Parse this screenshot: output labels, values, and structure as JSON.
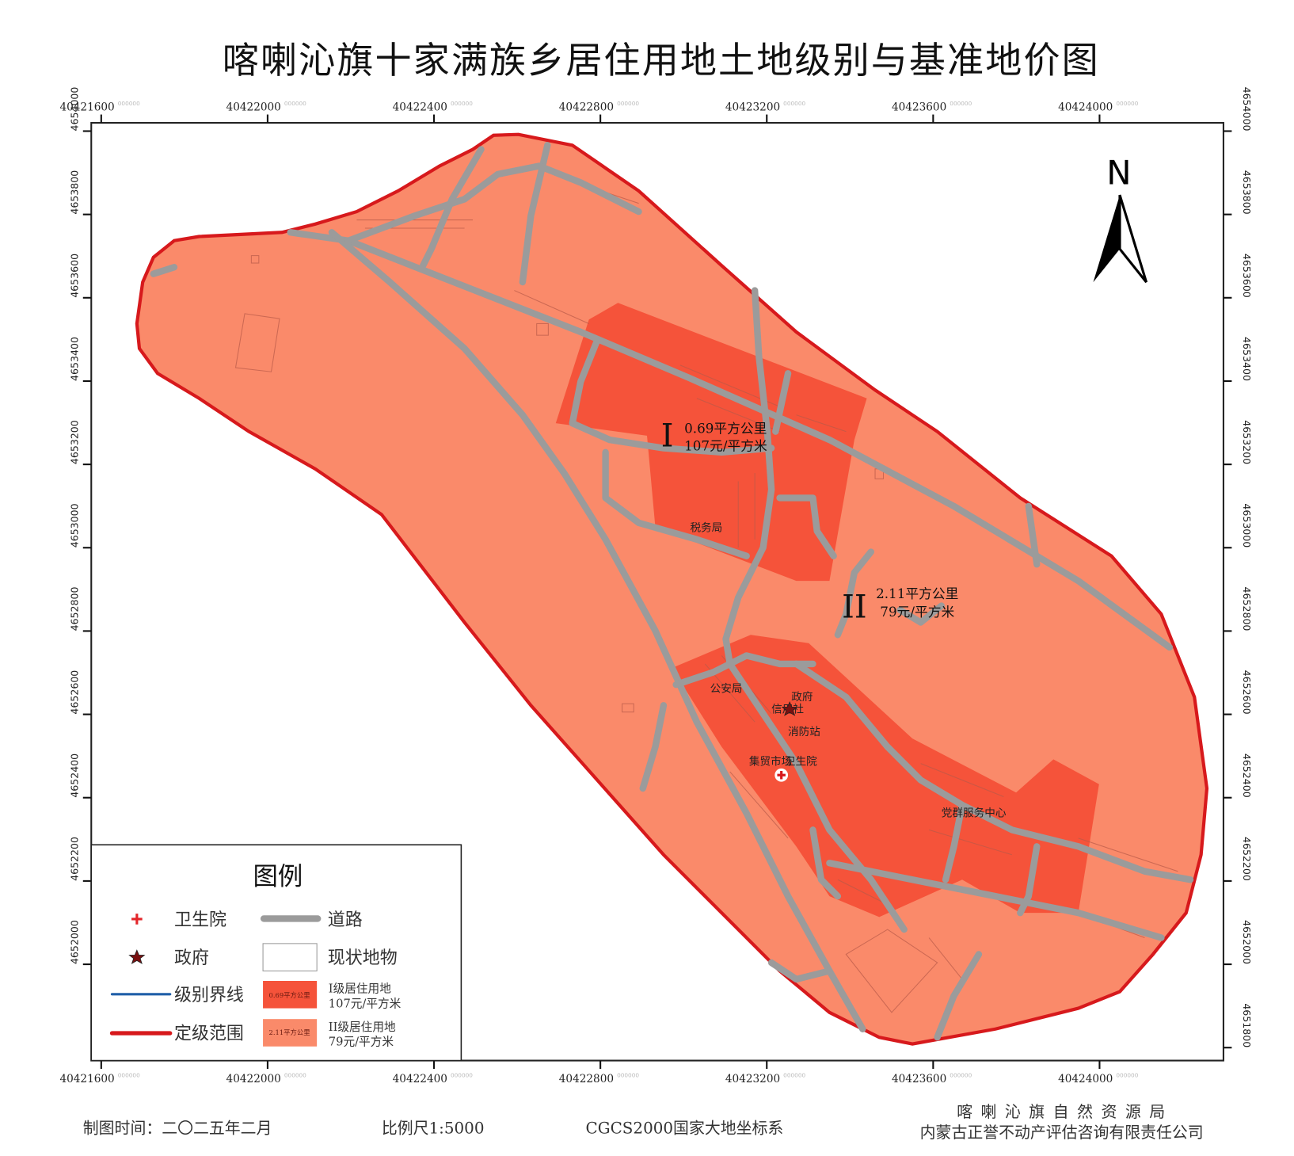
{
  "title": "喀喇沁旗十家满族乡居住用地土地级别与基准地价图",
  "axes": {
    "x_ticks": [
      "40421600",
      "40422000",
      "40422400",
      "40422800",
      "40423200",
      "40423600",
      "40424000"
    ],
    "y_ticks": [
      "4654000",
      "4653800",
      "4653600",
      "4653400",
      "4653200",
      "4653000",
      "4652800",
      "4652600",
      "4652400",
      "4652200",
      "4652000"
    ],
    "y_ticks_right_extra": "4651800",
    "tick_suffix": "000000"
  },
  "north_arrow": {
    "label": "N"
  },
  "zones": [
    {
      "level": "I",
      "area": "0.69平方公里",
      "price": "107元/平方米",
      "color": "#F5533A"
    },
    {
      "level": "II",
      "area": "2.11平方公里",
      "price": "79元/平方米",
      "color": "#FA8A6A"
    }
  ],
  "places": [
    "税务局",
    "公安局",
    "政府",
    "信用社",
    "消防站",
    "集贸市场",
    "卫生院",
    "党群服务中心"
  ],
  "legend": {
    "title": "图例",
    "items": {
      "clinic": "卫生院",
      "road": "道路",
      "government": "政府",
      "feature": "现状地物",
      "level_line": "级别界线",
      "level1_swatch": "0.69平方公里",
      "level1_line1": "I级居住用地",
      "level1_line2": "107元/平方米",
      "extent": "定级范围",
      "level2_swatch": "2.11平方公里",
      "level2_line1": "II级居住用地",
      "level2_line2": "79元/平方米"
    },
    "colors": {
      "level_line": "#1f5fa8",
      "extent": "#d7191c",
      "road": "#9b9b9b"
    }
  },
  "footer": {
    "date": "制图时间：二〇二五年二月",
    "scale": "比例尺1:5000",
    "crs": "CGCS2000国家大地坐标系",
    "org1": "喀 喇 沁 旗 自 然 资 源 局",
    "org2": "内蒙古正誉不动产评估咨询有限责任公司"
  }
}
